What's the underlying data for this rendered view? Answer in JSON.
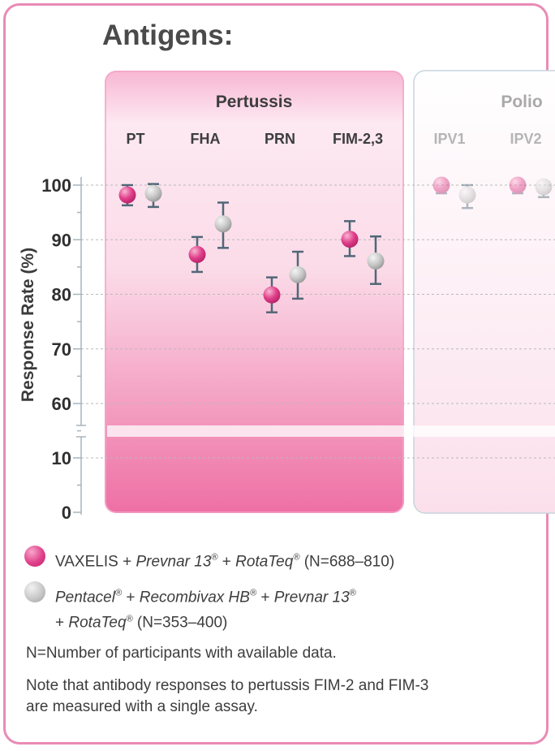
{
  "heading": "Antigens:",
  "chart_data": {
    "type": "scatter",
    "ylabel": "Response Rate (%)",
    "y_ticks_upper": [
      100,
      90,
      80,
      70,
      60
    ],
    "y_ticks_lower": [
      10,
      0
    ],
    "y_axis_break_between": [
      10,
      60
    ],
    "grid": "dashed horizontal",
    "groups": [
      {
        "name": "Pertussis",
        "categories": [
          "PT",
          "FHA",
          "PRN",
          "FIM-2,3"
        ]
      },
      {
        "name": "Polio",
        "categories": [
          "IPV1",
          "IPV2"
        ],
        "faded": true
      }
    ],
    "categories": [
      "PT",
      "FHA",
      "PRN",
      "FIM-2,3",
      "IPV1",
      "IPV2"
    ],
    "series": [
      {
        "name": "VAXELIS + Prevnar 13® + RotaTeq® (N=688–810)",
        "color": "#e0408a",
        "values": [
          98.2,
          87.3,
          79.9,
          90.1,
          100.0,
          100.0
        ],
        "ci_low": [
          96.3,
          84.1,
          76.7,
          87.0,
          98.5,
          98.5
        ],
        "ci_high": [
          100.0,
          90.5,
          83.1,
          93.4,
          100.0,
          100.0
        ]
      },
      {
        "name": "Pentacel® + Recombivax HB® + Prevnar 13® + RotaTeq® (N=353–400)",
        "color": "#bdbdbd",
        "values": [
          98.5,
          92.9,
          83.6,
          86.1,
          98.2,
          99.7
        ],
        "ci_low": [
          96.0,
          88.5,
          79.2,
          81.9,
          95.8,
          97.8
        ],
        "ci_high": [
          100.2,
          96.8,
          87.8,
          90.6,
          100.0,
          100.0
        ]
      }
    ]
  },
  "legend": {
    "vaxelis": {
      "plain1": "VAXELIS + ",
      "ital1": "Prevnar 13",
      "sup": "®",
      "plain2": " + ",
      "ital2": "RotaTeq",
      "plain3": " (N=688–810)"
    },
    "pentacel": {
      "ital1": "Pentacel",
      "sup": "®",
      "plain1": " + ",
      "ital2": "Recombivax HB",
      "ital3": "Prevnar 13",
      "ital4": "RotaTeq",
      "plain2": " (N=353–400)"
    }
  },
  "notes": [
    "N=Number of participants with available data.",
    "Note that antibody responses to pertussis FIM-2 and FIM-3 are measured with a single assay."
  ]
}
